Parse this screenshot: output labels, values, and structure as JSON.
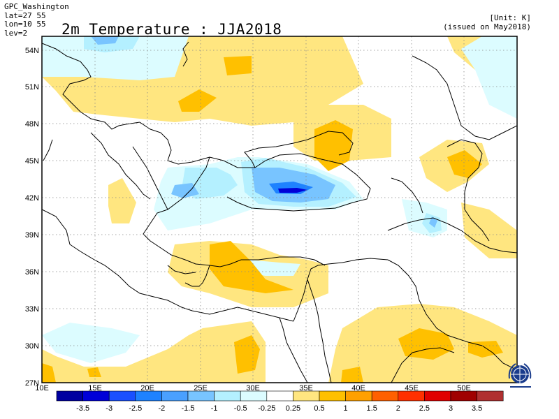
{
  "header": {
    "center": "GPC_Washington",
    "lat": "lat=27 55",
    "lon": "lon=10 55",
    "lev": "lev=2",
    "title": "2m Temperature : JJA2018",
    "unit": "[Unit: K]",
    "issued": "(issued on May2018)"
  },
  "map": {
    "lat_labels": [
      "54N",
      "51N",
      "48N",
      "45N",
      "42N",
      "39N",
      "36N",
      "33N",
      "30N",
      "27N"
    ],
    "lon_labels": [
      "10E",
      "15E",
      "20E",
      "25E",
      "30E",
      "35E",
      "40E",
      "45E",
      "50E"
    ],
    "extent": {
      "lon": [
        10,
        55
      ],
      "lat": [
        27,
        55
      ]
    }
  },
  "legend": {
    "labels": [
      "-3.5",
      "-3",
      "-2.5",
      "-2",
      "-1.5",
      "-1",
      "-0.5",
      "-0.25",
      "0.25",
      "0.5",
      "1",
      "1.5",
      "2",
      "2.5",
      "3",
      "3.5"
    ],
    "colors": [
      "#0000a0",
      "#0000d8",
      "#1a50ff",
      "#1e82ff",
      "#4aa0ff",
      "#78c4ff",
      "#b4f0ff",
      "#dcfcff",
      "#ffffff",
      "#ffe680",
      "#ffc000",
      "#ffa000",
      "#ff6000",
      "#ff3000",
      "#e00000",
      "#a00000",
      "#b03030"
    ]
  },
  "colors": {
    "anomaly_pos_1": "#ffe680",
    "anomaly_pos_2": "#ffc000",
    "anomaly_neg_1": "#dcfcff",
    "anomaly_neg_2": "#b4f0ff",
    "anomaly_neg_3": "#78c4ff",
    "anomaly_neg_4": "#1e82ff"
  }
}
